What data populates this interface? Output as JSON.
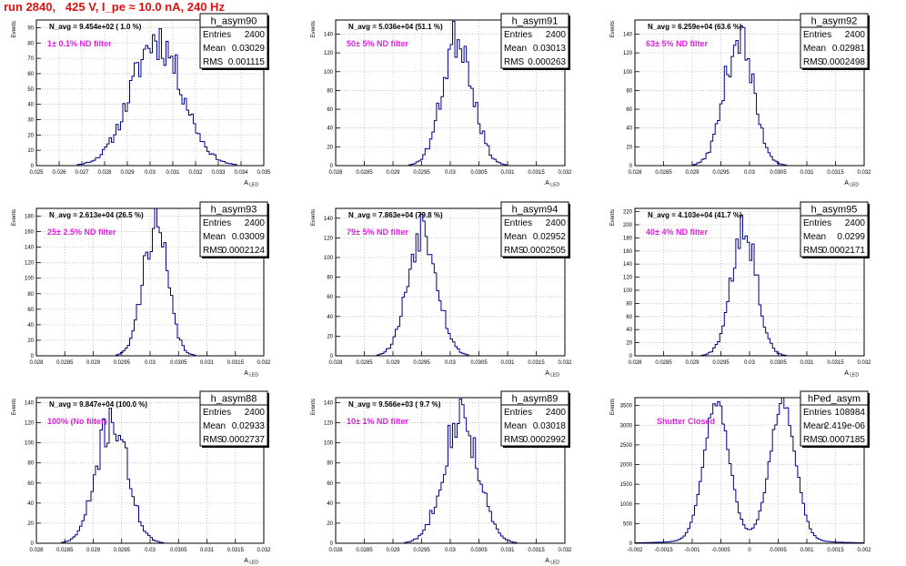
{
  "title": "run 2840,   425 V, I_pe ≈ 10.0 nA, 240 Hz",
  "colors": {
    "title": "#e01010",
    "histogram": "#000088",
    "annotation": "#e020e0",
    "grid": "#bbbbbb"
  },
  "chart_data": [
    {
      "type": "histogram",
      "name": "h_asym90",
      "navg": "N_avg = 9.454e+02 ( 1.0 %)",
      "annotation": "1± 0.1% ND filter",
      "stats": {
        "entries": "2400",
        "mean": "0.03029",
        "rms": "0.001115"
      },
      "ylabel": "Events",
      "xlabel": "A_LED",
      "xlim": [
        0.025,
        0.035
      ],
      "xticks": [
        "0.025",
        "0.026",
        "0.027",
        "0.028",
        "0.029",
        "0.03",
        "0.031",
        "0.032",
        "0.033",
        "0.034",
        "0.035"
      ],
      "ylim": [
        0,
        95
      ],
      "yticks": [
        "0",
        "10",
        "20",
        "30",
        "40",
        "50",
        "60",
        "70",
        "80",
        "90"
      ],
      "mean": 0.03029,
      "sigma": 0.001115,
      "peak": 87,
      "seed": 11
    },
    {
      "type": "histogram",
      "name": "h_asym91",
      "navg": "N_avg = 5.036e+04 (51.1 %)",
      "annotation": "50± 5% ND filter",
      "stats": {
        "entries": "2400",
        "mean": "0.03013",
        "rms": "0.000263"
      },
      "ylabel": "Events",
      "xlabel": "A_LED",
      "xlim": [
        0.028,
        0.032
      ],
      "xticks": [
        "0.028",
        "0.0285",
        "0.029",
        "0.0295",
        "0.03",
        "0.0305",
        "0.031",
        "0.0315",
        "0.032"
      ],
      "ylim": [
        0,
        155
      ],
      "yticks": [
        "0",
        "20",
        "40",
        "60",
        "80",
        "100",
        "120",
        "140"
      ],
      "mean": 0.03013,
      "sigma": 0.000263,
      "peak": 145,
      "seed": 23
    },
    {
      "type": "histogram",
      "name": "h_asym92",
      "navg": "N_avg = 6.259e+04 (63.6 %)",
      "annotation": "63± 5% ND filter",
      "stats": {
        "entries": "2400",
        "mean": "0.02981",
        "rms": "0.0002498"
      },
      "ylabel": "Events",
      "xlabel": "A_LED",
      "xlim": [
        0.028,
        0.032
      ],
      "xticks": [
        "0.028",
        "0.0285",
        "0.029",
        "0.0295",
        "0.03",
        "0.0305",
        "0.031",
        "0.0315",
        "0.032"
      ],
      "ylim": [
        0,
        155
      ],
      "yticks": [
        "0",
        "20",
        "40",
        "60",
        "80",
        "100",
        "120",
        "140"
      ],
      "mean": 0.02981,
      "sigma": 0.0002498,
      "peak": 145,
      "seed": 37
    },
    {
      "type": "histogram",
      "name": "h_asym93",
      "navg": "N_avg = 2.613e+04 (26.5 %)",
      "annotation": "25± 2.5% ND filter",
      "stats": {
        "entries": "2400",
        "mean": "0.03009",
        "rms": "0.0002124"
      },
      "ylabel": "Events",
      "xlabel": "A_LED",
      "xlim": [
        0.028,
        0.032
      ],
      "xticks": [
        "0.028",
        "0.0285",
        "0.029",
        "0.0295",
        "0.03",
        "0.0305",
        "0.031",
        "0.0315",
        "0.032"
      ],
      "ylim": [
        0,
        190
      ],
      "yticks": [
        "0",
        "20",
        "40",
        "60",
        "80",
        "100",
        "120",
        "140",
        "160",
        "180"
      ],
      "mean": 0.03009,
      "sigma": 0.0002124,
      "peak": 180,
      "seed": 41
    },
    {
      "type": "histogram",
      "name": "h_asym94",
      "navg": "N_avg = 7.863e+04 (79.8 %)",
      "annotation": "79± 5% ND filter",
      "stats": {
        "entries": "2400",
        "mean": "0.02952",
        "rms": "0.0002505"
      },
      "ylabel": "Events",
      "xlabel": "A_LED",
      "xlim": [
        0.028,
        0.032
      ],
      "xticks": [
        "0.028",
        "0.0285",
        "0.029",
        "0.0295",
        "0.03",
        "0.0305",
        "0.031",
        "0.0315",
        "0.032"
      ],
      "ylim": [
        0,
        150
      ],
      "yticks": [
        "0",
        "20",
        "40",
        "60",
        "80",
        "100",
        "120",
        "140"
      ],
      "mean": 0.02952,
      "sigma": 0.0002505,
      "peak": 140,
      "seed": 53
    },
    {
      "type": "histogram",
      "name": "h_asym95",
      "navg": "N_avg = 4.103e+04 (41.7 %)",
      "annotation": "40± 4% ND filter",
      "stats": {
        "entries": "2400",
        "mean": "0.0299",
        "rms": "0.0002171"
      },
      "ylabel": "Events",
      "xlabel": "A_LED",
      "xlim": [
        0.028,
        0.032
      ],
      "xticks": [
        "0.028",
        "0.0285",
        "0.029",
        "0.0295",
        "0.03",
        "0.0305",
        "0.031",
        "0.0315",
        "0.032"
      ],
      "ylim": [
        0,
        225
      ],
      "yticks": [
        "0",
        "20",
        "40",
        "60",
        "80",
        "100",
        "120",
        "140",
        "160",
        "180",
        "200",
        "220"
      ],
      "mean": 0.0299,
      "sigma": 0.0002171,
      "peak": 215,
      "seed": 67
    },
    {
      "type": "histogram",
      "name": "h_asym88",
      "navg": "N_avg = 9.847e+04 (100.0 %)",
      "annotation": "100% (No filter)",
      "stats": {
        "entries": "2400",
        "mean": "0.02933",
        "rms": "0.0002737"
      },
      "ylabel": "Events",
      "xlabel": "A_LED",
      "xlim": [
        0.028,
        0.032
      ],
      "xticks": [
        "0.028",
        "0.0285",
        "0.029",
        "0.0295",
        "0.03",
        "0.0305",
        "0.031",
        "0.0315",
        "0.032"
      ],
      "ylim": [
        0,
        145
      ],
      "yticks": [
        "0",
        "20",
        "40",
        "60",
        "80",
        "100",
        "120",
        "140"
      ],
      "mean": 0.02933,
      "sigma": 0.0002737,
      "peak": 130,
      "seed": 71
    },
    {
      "type": "histogram",
      "name": "h_asym89",
      "navg": "N_avg = 9.566e+03 ( 9.7 %)",
      "annotation": "10± 1% ND filter",
      "stats": {
        "entries": "2400",
        "mean": "0.03018",
        "rms": "0.0002992"
      },
      "ylabel": "Events",
      "xlabel": "A_LED",
      "xlim": [
        0.028,
        0.032
      ],
      "xticks": [
        "0.028",
        "0.0285",
        "0.029",
        "0.0295",
        "0.03",
        "0.0305",
        "0.031",
        "0.0315",
        "0.032"
      ],
      "ylim": [
        0,
        145
      ],
      "yticks": [
        "0",
        "20",
        "40",
        "60",
        "80",
        "100",
        "120",
        "140"
      ],
      "mean": 0.03018,
      "sigma": 0.0002992,
      "peak": 135,
      "seed": 83
    },
    {
      "type": "histogram",
      "name": "hPed_asym",
      "navg": "",
      "annotation": "Shutter Closed",
      "stats": {
        "entries": "108984",
        "mean": "2.419e-06",
        "rms": "0.0007185"
      },
      "ylabel": "Events",
      "xlabel": "",
      "xlim": [
        -0.002,
        0.002
      ],
      "xticks": [
        "-0.002",
        "-0.0015",
        "-0.001",
        "-0.0005",
        "0",
        "0.0005",
        "0.001",
        "0.0015",
        "0.002"
      ],
      "ylim": [
        0,
        3700
      ],
      "yticks": [
        "0",
        "500",
        "1000",
        "1500",
        "2000",
        "2500",
        "3000",
        "3500"
      ],
      "bimodal": true,
      "peak": 3500,
      "seed": 97
    }
  ]
}
